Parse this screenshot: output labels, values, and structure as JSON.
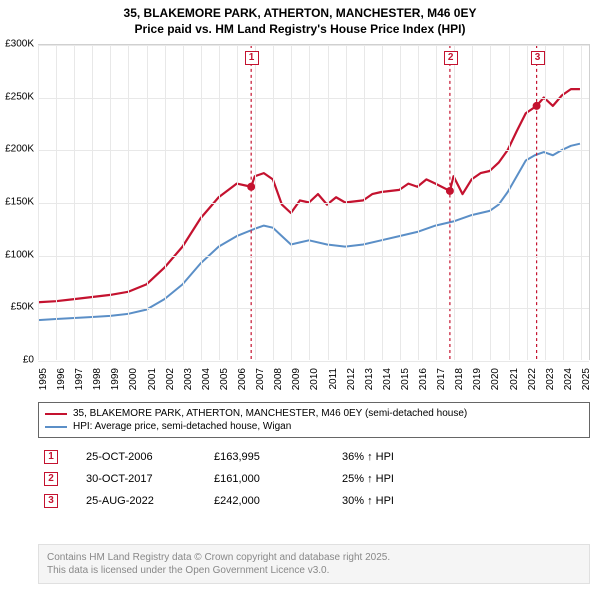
{
  "title_line1": "35, BLAKEMORE PARK, ATHERTON, MANCHESTER, M46 0EY",
  "title_line2": "Price paid vs. HM Land Registry's House Price Index (HPI)",
  "chart": {
    "type": "line",
    "background_color": "#ffffff",
    "grid_color": "#e8e8e8",
    "series": [
      {
        "name": "35, BLAKEMORE PARK, ATHERTON, MANCHESTER, M46 0EY (semi-detached house)",
        "color": "#c4122f",
        "line_width": 2.2,
        "points": [
          [
            1995,
            55000
          ],
          [
            1996,
            56000
          ],
          [
            1997,
            58000
          ],
          [
            1998,
            60000
          ],
          [
            1999,
            62000
          ],
          [
            2000,
            65000
          ],
          [
            2001,
            72000
          ],
          [
            2002,
            88000
          ],
          [
            2003,
            108000
          ],
          [
            2004,
            135000
          ],
          [
            2005,
            155000
          ],
          [
            2006,
            168000
          ],
          [
            2006.8,
            165000
          ],
          [
            2007,
            175000
          ],
          [
            2007.5,
            178000
          ],
          [
            2008,
            172000
          ],
          [
            2008.5,
            148000
          ],
          [
            2009,
            140000
          ],
          [
            2009.5,
            152000
          ],
          [
            2010,
            150000
          ],
          [
            2010.5,
            158000
          ],
          [
            2011,
            148000
          ],
          [
            2011.5,
            155000
          ],
          [
            2012,
            150000
          ],
          [
            2013,
            152000
          ],
          [
            2013.5,
            158000
          ],
          [
            2014,
            160000
          ],
          [
            2015,
            162000
          ],
          [
            2015.5,
            168000
          ],
          [
            2016,
            165000
          ],
          [
            2016.5,
            172000
          ],
          [
            2017,
            168000
          ],
          [
            2017.8,
            161000
          ],
          [
            2018,
            175000
          ],
          [
            2018.5,
            158000
          ],
          [
            2019,
            172000
          ],
          [
            2019.5,
            178000
          ],
          [
            2020,
            180000
          ],
          [
            2020.5,
            188000
          ],
          [
            2021,
            200000
          ],
          [
            2021.5,
            218000
          ],
          [
            2022,
            235000
          ],
          [
            2022.6,
            242000
          ],
          [
            2023,
            250000
          ],
          [
            2023.5,
            242000
          ],
          [
            2024,
            252000
          ],
          [
            2024.5,
            258000
          ],
          [
            2025,
            258000
          ]
        ]
      },
      {
        "name": "HPI: Average price, semi-detached house, Wigan",
        "color": "#5b8fc7",
        "line_width": 2.0,
        "points": [
          [
            1995,
            38000
          ],
          [
            1996,
            39000
          ],
          [
            1997,
            40000
          ],
          [
            1998,
            41000
          ],
          [
            1999,
            42000
          ],
          [
            2000,
            44000
          ],
          [
            2001,
            48000
          ],
          [
            2002,
            58000
          ],
          [
            2003,
            72000
          ],
          [
            2004,
            92000
          ],
          [
            2005,
            108000
          ],
          [
            2006,
            118000
          ],
          [
            2007,
            125000
          ],
          [
            2007.5,
            128000
          ],
          [
            2008,
            126000
          ],
          [
            2008.5,
            118000
          ],
          [
            2009,
            110000
          ],
          [
            2009.5,
            112000
          ],
          [
            2010,
            114000
          ],
          [
            2011,
            110000
          ],
          [
            2012,
            108000
          ],
          [
            2013,
            110000
          ],
          [
            2014,
            114000
          ],
          [
            2015,
            118000
          ],
          [
            2016,
            122000
          ],
          [
            2017,
            128000
          ],
          [
            2018,
            132000
          ],
          [
            2019,
            138000
          ],
          [
            2020,
            142000
          ],
          [
            2020.5,
            148000
          ],
          [
            2021,
            160000
          ],
          [
            2021.5,
            175000
          ],
          [
            2022,
            190000
          ],
          [
            2022.5,
            195000
          ],
          [
            2023,
            198000
          ],
          [
            2023.5,
            195000
          ],
          [
            2024,
            200000
          ],
          [
            2024.5,
            204000
          ],
          [
            2025,
            206000
          ]
        ]
      }
    ],
    "markers": [
      {
        "x": 2006.8,
        "y": 165000,
        "color": "#c4122f"
      },
      {
        "x": 2017.8,
        "y": 161000,
        "color": "#c4122f"
      },
      {
        "x": 2022.6,
        "y": 242000,
        "color": "#c4122f"
      }
    ],
    "events": [
      {
        "n": "1",
        "x": 2006.8,
        "color": "#c4122f"
      },
      {
        "n": "2",
        "x": 2017.8,
        "color": "#c4122f"
      },
      {
        "n": "3",
        "x": 2022.6,
        "color": "#c4122f"
      }
    ],
    "x": {
      "min": 1995,
      "max": 2025.5,
      "ticks": [
        1995,
        1996,
        1997,
        1998,
        1999,
        2000,
        2001,
        2002,
        2003,
        2004,
        2005,
        2006,
        2007,
        2008,
        2009,
        2010,
        2011,
        2012,
        2013,
        2014,
        2015,
        2016,
        2017,
        2018,
        2019,
        2020,
        2021,
        2022,
        2023,
        2024,
        2025
      ]
    },
    "y": {
      "min": 0,
      "max": 300000,
      "ticks": [
        0,
        50000,
        100000,
        150000,
        200000,
        250000,
        300000
      ],
      "tick_labels": [
        "£0",
        "£50K",
        "£100K",
        "£150K",
        "£200K",
        "£250K",
        "£300K"
      ]
    }
  },
  "legend": {
    "border_color": "#666666",
    "items": [
      {
        "color": "#c4122f",
        "label": "35, BLAKEMORE PARK, ATHERTON, MANCHESTER, M46 0EY (semi-detached house)"
      },
      {
        "color": "#5b8fc7",
        "label": "HPI: Average price, semi-detached house, Wigan"
      }
    ]
  },
  "events_table": {
    "rows": [
      {
        "n": "1",
        "color": "#c4122f",
        "date": "25-OCT-2006",
        "price": "£163,995",
        "delta": "36% ↑ HPI"
      },
      {
        "n": "2",
        "color": "#c4122f",
        "date": "30-OCT-2017",
        "price": "£161,000",
        "delta": "25% ↑ HPI"
      },
      {
        "n": "3",
        "color": "#c4122f",
        "date": "25-AUG-2022",
        "price": "£242,000",
        "delta": "30% ↑ HPI"
      }
    ]
  },
  "attribution": {
    "line1": "Contains HM Land Registry data © Crown copyright and database right 2025.",
    "line2": "This data is licensed under the Open Government Licence v3.0.",
    "bg_color": "#f5f5f5",
    "text_color": "#888888"
  }
}
